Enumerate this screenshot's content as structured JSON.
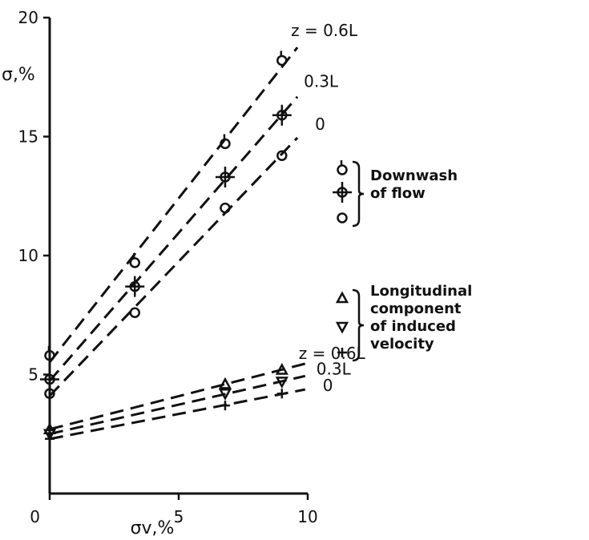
{
  "chart_data": {
    "type": "line",
    "xlabel": "σv,%",
    "ylabel": "σ,%",
    "xlim": [
      0,
      10
    ],
    "ylim": [
      0,
      20
    ],
    "x_ticks": [
      "0",
      "5",
      "10"
    ],
    "y_ticks": [
      "5",
      "10",
      "15",
      "20"
    ],
    "line_style": "dashed",
    "groups": [
      {
        "legend": [
          "Downwash",
          "of flow"
        ],
        "series": [
          {
            "label": "z = 0.6L",
            "marker": "circle-tick",
            "x": [
              0,
              3.3,
              6.8,
              9
            ],
            "y": [
              5.8,
              9.7,
              14.7,
              18.2
            ]
          },
          {
            "label": "0.3L",
            "marker": "circle-cross",
            "x": [
              0,
              3.3,
              6.8,
              9
            ],
            "y": [
              4.8,
              8.7,
              13.3,
              15.9
            ]
          },
          {
            "label": "0",
            "marker": "circle",
            "x": [
              0,
              3.3,
              6.8,
              9
            ],
            "y": [
              4.2,
              7.6,
              12.0,
              14.2
            ]
          }
        ]
      },
      {
        "legend": [
          "Longitudinal",
          "component",
          "of induced",
          "velocity"
        ],
        "series": [
          {
            "label": "z = 0.6L",
            "marker": "triangle-up",
            "x": [
              0,
              6.8,
              9
            ],
            "y": [
              2.7,
              4.6,
              5.2
            ]
          },
          {
            "label": "0.3L",
            "marker": "triangle-down",
            "x": [
              0,
              6.8,
              9
            ],
            "y": [
              2.5,
              4.2,
              4.7
            ]
          },
          {
            "label": "0",
            "marker": "plus",
            "x": [
              0,
              6.8,
              9
            ],
            "y": [
              2.3,
              3.7,
              4.2
            ]
          }
        ]
      }
    ]
  }
}
